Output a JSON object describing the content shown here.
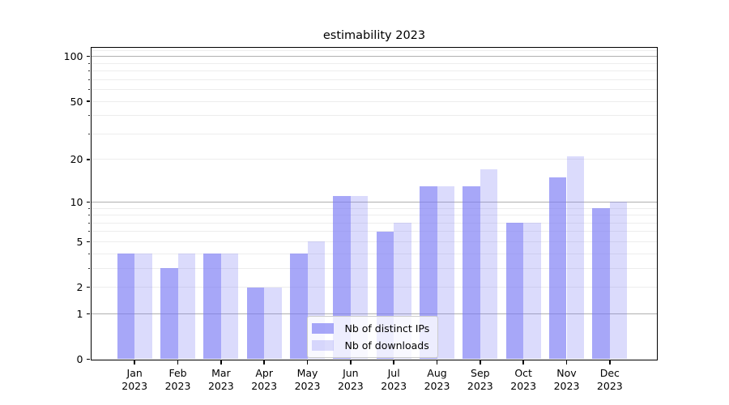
{
  "chart_data": {
    "type": "bar",
    "title": "estimability 2023",
    "categories": [
      "Jan 2023",
      "Feb 2023",
      "Mar 2023",
      "Apr 2023",
      "May 2023",
      "Jun 2023",
      "Jul 2023",
      "Aug 2023",
      "Sep 2023",
      "Oct 2023",
      "Nov 2023",
      "Dec 2023"
    ],
    "series": [
      {
        "name": "Nb of distinct IPs",
        "color": "rgba(121,121,245,0.66)",
        "values": [
          4,
          3,
          4,
          2,
          4,
          11,
          6,
          13,
          13,
          7,
          15,
          9
        ]
      },
      {
        "name": "Nb of downloads",
        "color": "rgba(121,121,245,0.27)",
        "values": [
          4,
          4,
          4,
          2,
          5,
          11,
          7,
          13,
          17,
          7,
          21,
          10
        ]
      }
    ],
    "xlabel": "",
    "ylabel": "",
    "yscale": "log1p",
    "ylim": [
      0,
      115
    ],
    "ytick_labels": [
      "100",
      "50",
      "20",
      "10",
      "5",
      "2",
      "1",
      "0"
    ],
    "ytick_values": [
      100,
      50,
      20,
      10,
      5,
      2,
      1,
      0
    ],
    "y_major_gridlines": [
      1,
      10,
      100
    ],
    "y_minor_gridlines": [
      2,
      3,
      4,
      5,
      6,
      7,
      8,
      9,
      20,
      30,
      40,
      50,
      60,
      70,
      80,
      90,
      110
    ],
    "grid": true,
    "legend_position": "lower center",
    "colors": {
      "major_grid": "#b0b0b0",
      "minor_grid": "#ededed",
      "axis": "#000000",
      "background": "#ffffff"
    }
  }
}
